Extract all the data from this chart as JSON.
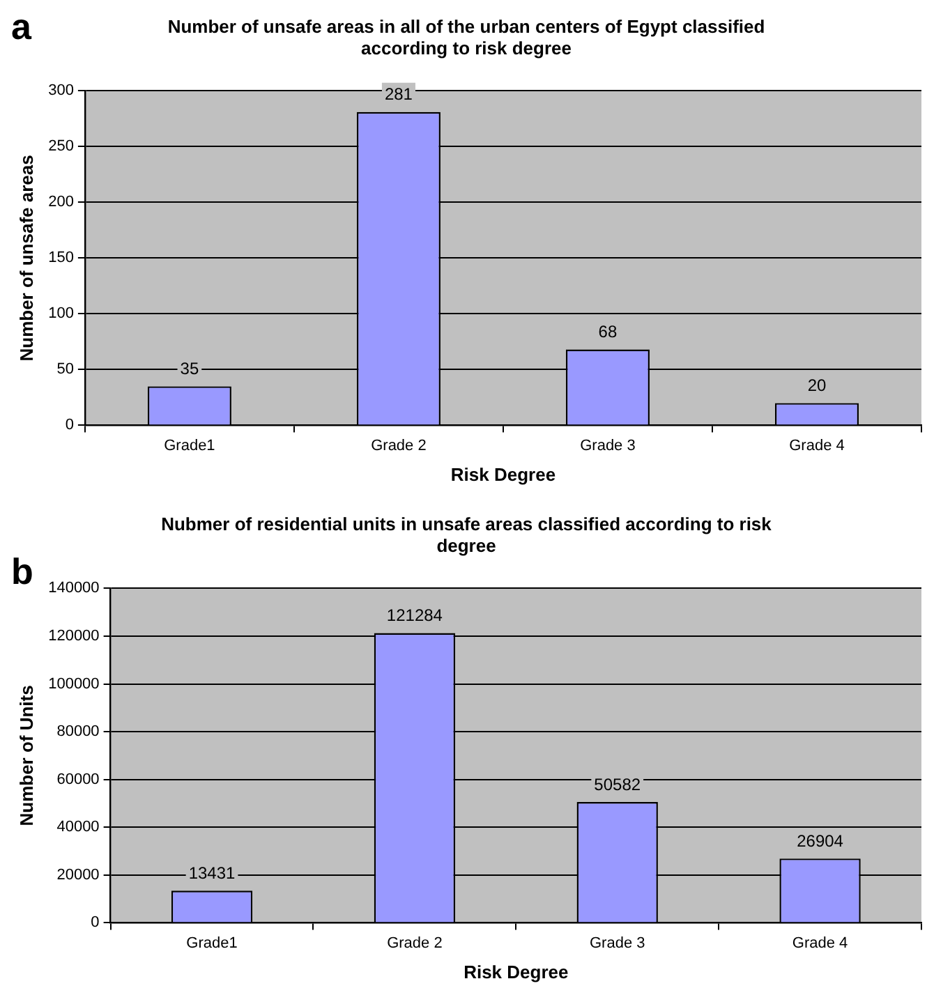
{
  "chart_data": [
    {
      "type": "bar",
      "title": "Number of unsafe areas in all of the urban centers of Egypt classified according to risk degree",
      "xlabel": "Risk Degree",
      "ylabel": "Number of unsafe areas",
      "annotations": [
        "a"
      ],
      "categories": [
        "Grade1",
        "Grade 2",
        "Grade 3",
        "Grade 4"
      ],
      "values": [
        35,
        281,
        68,
        20
      ],
      "color": "#9999ff",
      "ylim": [
        0,
        300
      ],
      "yticks": [
        0,
        50,
        100,
        150,
        200,
        250,
        300
      ],
      "grid": "y",
      "data_labels": true
    },
    {
      "type": "bar",
      "title": "Nubmer of residential units in unsafe areas classified according to risk degree",
      "xlabel": "Risk Degree",
      "ylabel": "Number of Units",
      "annotations": [
        "b"
      ],
      "categories": [
        "Grade1",
        "Grade 2",
        "Grade 3",
        "Grade 4"
      ],
      "values": [
        13431,
        121284,
        50582,
        26904
      ],
      "color": "#9999ff",
      "ylim": [
        0,
        140000
      ],
      "yticks": [
        0,
        20000,
        40000,
        60000,
        80000,
        100000,
        120000,
        140000
      ],
      "grid": "y",
      "data_labels": true
    }
  ]
}
